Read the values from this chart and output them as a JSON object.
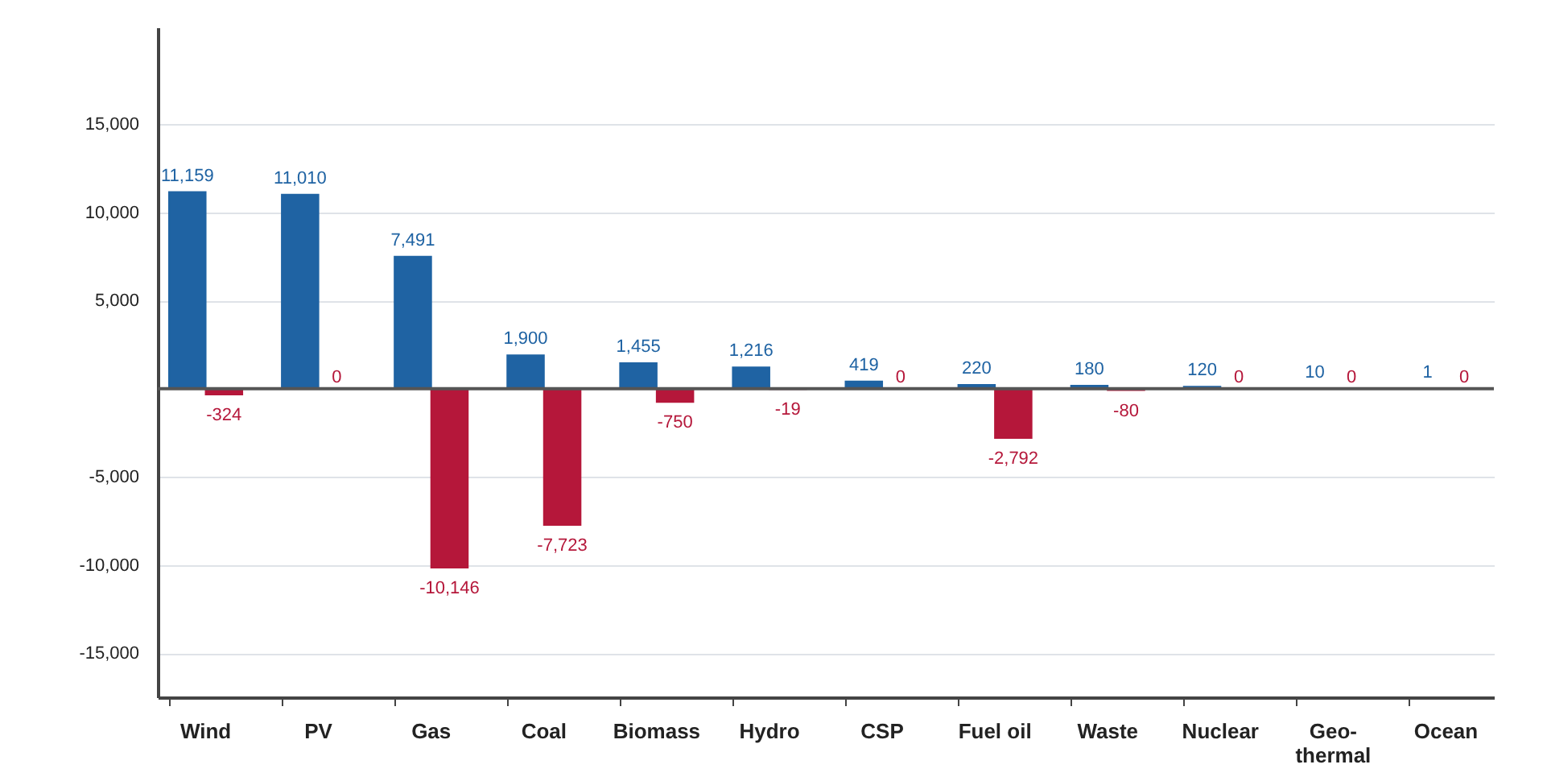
{
  "chart_data": {
    "type": "bar",
    "categories": [
      "Wind",
      "PV",
      "Gas",
      "Coal",
      "Biomass",
      "Hydro",
      "CSP",
      "Fuel oil",
      "Waste",
      "Nuclear",
      "Geo-thermal",
      "Ocean"
    ],
    "series": [
      {
        "color": "#1f63a3",
        "values": [
          11159,
          11010,
          7491,
          1900,
          1455,
          1216,
          419,
          220,
          180,
          120,
          10,
          1
        ],
        "value_labels": [
          "11,159",
          "11,010",
          "7,491",
          "1,900",
          "1,455",
          "1,216",
          "419",
          "220",
          "180",
          "120",
          "10",
          "1"
        ]
      },
      {
        "color": "#b5173a",
        "values": [
          -324,
          0,
          -10146,
          -7723,
          -750,
          -19,
          0,
          -2792,
          -80,
          0,
          0,
          0
        ],
        "value_labels": [
          "-324",
          "0",
          "-10,146",
          "-7,723",
          "-750",
          "-19",
          "0",
          "-2,792",
          "-80",
          "0",
          "0",
          "0"
        ]
      }
    ],
    "ylim": [
      -17500,
      20500
    ],
    "yticks": [
      {
        "value": -15000,
        "label": "-15,000"
      },
      {
        "value": -10000,
        "label": "-10,000"
      },
      {
        "value": -5000,
        "label": "-5,000"
      },
      {
        "value": 5000,
        "label": "5,000"
      },
      {
        "value": 10000,
        "label": "10,000"
      },
      {
        "value": 15000,
        "label": "15,000"
      }
    ],
    "ref_lines": [
      {
        "axis": "y",
        "value": 0,
        "color": "#555555"
      }
    ],
    "grid": "y"
  }
}
